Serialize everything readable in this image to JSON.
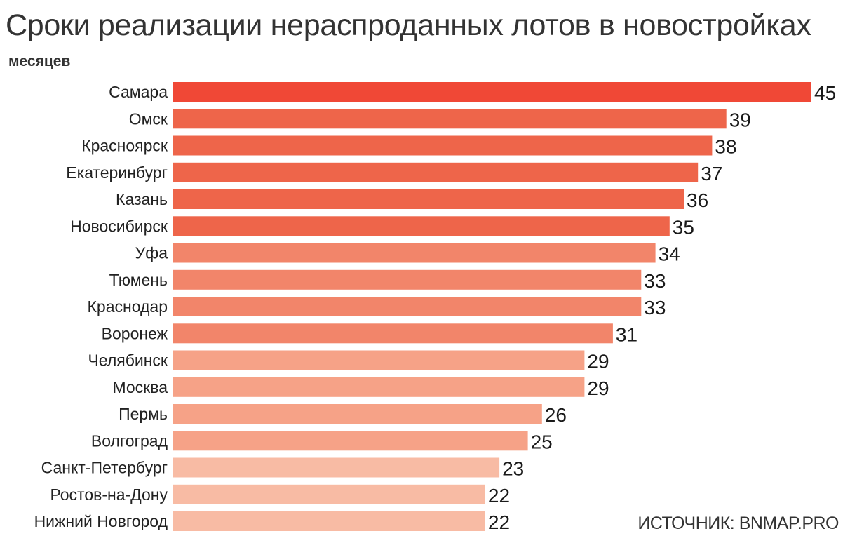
{
  "chart_data": {
    "type": "bar",
    "orientation": "horizontal",
    "title": "Сроки реализации нераспроданных лотов в новостройках",
    "unit_label": "месяцев",
    "source": "ИСТОЧНИК: BNMAP.PRO",
    "categories": [
      "Самара",
      "Омск",
      "Красноярск",
      "Екатеринбург",
      "Казань",
      "Новосибирск",
      "Уфа",
      "Тюмень",
      "Краснодар",
      "Воронеж",
      "Челябинск",
      "Москва",
      "Пермь",
      "Волгоград",
      "Санкт-Петербург",
      "Ростов-на-Дону",
      "Нижний Новгород"
    ],
    "values": [
      45,
      39,
      38,
      37,
      36,
      35,
      34,
      33,
      33,
      31,
      29,
      29,
      26,
      25,
      23,
      22,
      22
    ],
    "data_labels": [
      "45",
      "39",
      "38",
      "37",
      "36",
      "35",
      "34",
      "33",
      "33",
      "31",
      "29",
      "29",
      "26",
      "25",
      "23",
      "22",
      "22"
    ],
    "bar_colors": [
      "#f04836",
      "#ee654a",
      "#ee654a",
      "#ee654a",
      "#ee654a",
      "#ee654a",
      "#f2856a",
      "#f2856a",
      "#f2856a",
      "#f2856a",
      "#f6a287",
      "#f6a287",
      "#f6a287",
      "#f6a287",
      "#f8bba4",
      "#f8bba4",
      "#f8bba4"
    ],
    "xlim": [
      0,
      45
    ],
    "grid": false,
    "legend": "none"
  }
}
